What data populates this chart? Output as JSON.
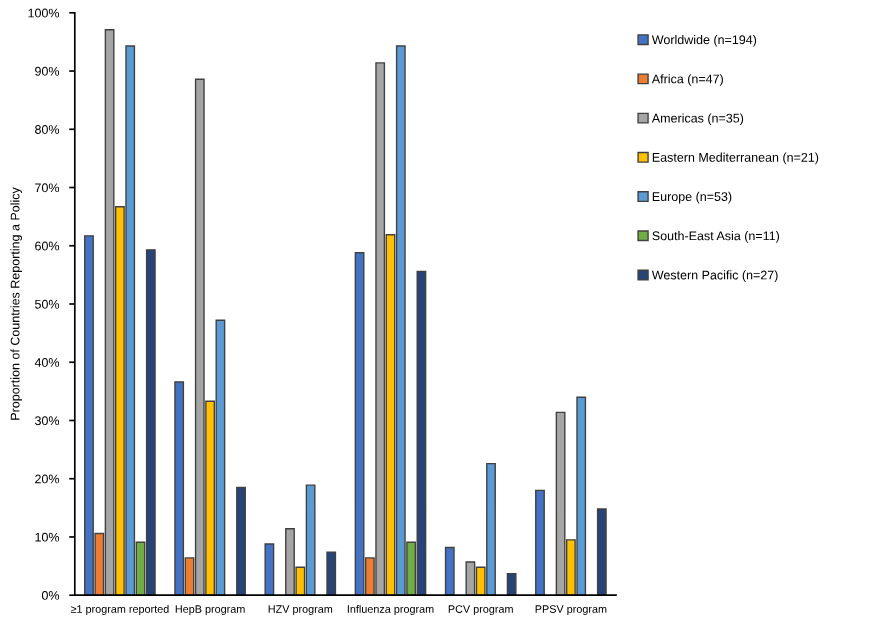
{
  "chart_data": {
    "type": "bar",
    "ylabel": "Proportion of Countries Reporting a Policy",
    "categories": [
      "≥1 program reported",
      "HepB program",
      "HZV program",
      "Influenza program",
      "PCV program",
      "PPSV program"
    ],
    "series": [
      {
        "name": "Worldwide (n=194)",
        "color": "#4472c4",
        "values": [
          61.7,
          36.6,
          8.8,
          58.8,
          8.2,
          18.0
        ]
      },
      {
        "name": "Africa (n=47)",
        "color": "#ed7d31",
        "values": [
          10.6,
          6.4,
          null,
          6.4,
          null,
          null
        ]
      },
      {
        "name": "Americas (n=35)",
        "color": "#a5a5a5",
        "values": [
          97.1,
          88.6,
          11.4,
          91.4,
          5.7,
          31.4
        ]
      },
      {
        "name": "Eastern Mediterranean (n=21)",
        "color": "#ffc000",
        "values": [
          66.7,
          33.3,
          4.8,
          61.9,
          4.8,
          9.5
        ]
      },
      {
        "name": "Europe (n=53)",
        "color": "#5b9bd5",
        "values": [
          94.3,
          47.2,
          18.9,
          94.3,
          22.6,
          34.0
        ]
      },
      {
        "name": "South-East Asia (n=11)",
        "color": "#70ad47",
        "values": [
          9.1,
          null,
          null,
          9.1,
          null,
          null
        ]
      },
      {
        "name": "Western Pacific (n=27)",
        "color": "#264478",
        "values": [
          59.3,
          18.5,
          7.4,
          55.6,
          3.7,
          14.8
        ]
      }
    ],
    "ylim": [
      0,
      100
    ],
    "yticks": [
      {
        "value": 0,
        "label": "0%"
      },
      {
        "value": 10,
        "label": "10%"
      },
      {
        "value": 20,
        "label": "20%"
      },
      {
        "value": 30,
        "label": "30%"
      },
      {
        "value": 40,
        "label": "40%"
      },
      {
        "value": 50,
        "label": "50%"
      },
      {
        "value": 60,
        "label": "60%"
      },
      {
        "value": 70,
        "label": "70%"
      },
      {
        "value": 80,
        "label": "80%"
      },
      {
        "value": 90,
        "label": "90%"
      },
      {
        "value": 100,
        "label": "100%"
      }
    ],
    "grid": false,
    "legend": "right"
  }
}
